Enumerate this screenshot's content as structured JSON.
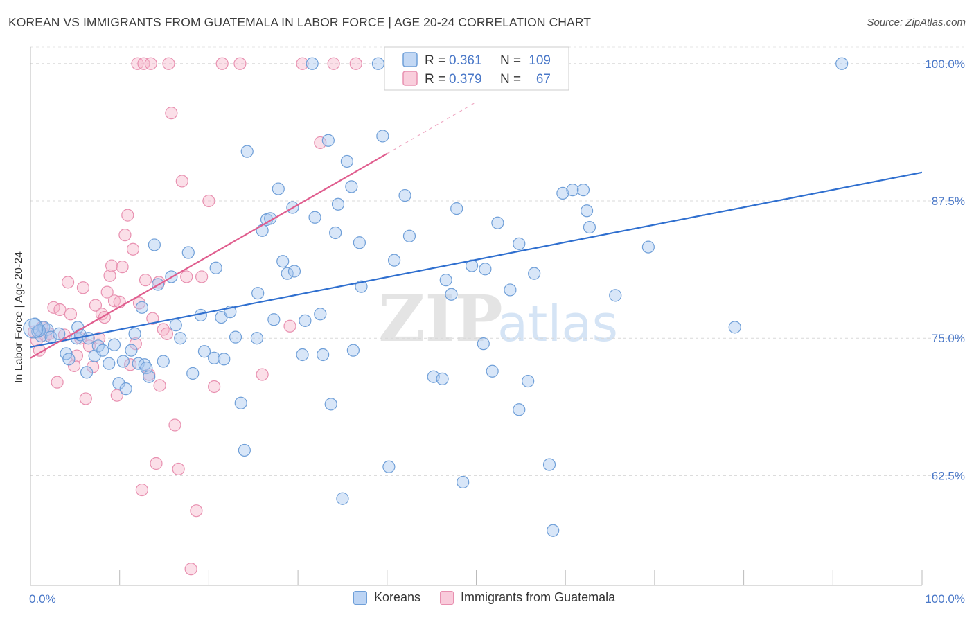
{
  "header": {
    "title": "KOREAN VS IMMIGRANTS FROM GUATEMALA IN LABOR FORCE | AGE 20-24 CORRELATION CHART",
    "source": "Source: ZipAtlas.com"
  },
  "watermark": {
    "zip": "ZIP",
    "atlas": "atlas"
  },
  "legend_top": {
    "rows": [
      {
        "r_label": "R =",
        "r_value": "0.361",
        "n_label": "N =",
        "n_value": "109"
      },
      {
        "r_label": "R =",
        "r_value": "0.379",
        "n_label": "N =",
        "n_value": "67"
      }
    ]
  },
  "chart_data": {
    "type": "scatter",
    "title": "KOREAN VS IMMIGRANTS FROM GUATEMALA IN LABOR FORCE | AGE 20-24 CORRELATION CHART",
    "xlabel": "",
    "ylabel": "In Labor Force | Age 20-24",
    "xlim": [
      0,
      100
    ],
    "ylim": [
      52.5,
      101.5
    ],
    "x_tick_labels": [
      "0.0%",
      "100.0%"
    ],
    "y_ticks": [
      62.5,
      75.0,
      87.5,
      100.0
    ],
    "y_tick_labels": [
      "62.5%",
      "75.0%",
      "87.5%",
      "100.0%"
    ],
    "grid": "horizontal dashed",
    "legend_position": "top-center and bottom",
    "colors": {
      "koreans_fill": "#a9c8f0",
      "koreans_stroke": "#6f9fd8",
      "koreans_line": "#2f6fcf",
      "guatemala_fill": "#f6b9cd",
      "guatemala_stroke": "#e890b0",
      "guatemala_line": "#e05d8e",
      "tick_label": "#4a78c8"
    },
    "series": [
      {
        "name": "Koreans",
        "trend": {
          "x": [
            0,
            100
          ],
          "y": [
            74.2,
            90.1
          ],
          "r": 0.361,
          "n": 109
        },
        "points": [
          [
            0.5,
            76.3
          ],
          [
            0.8,
            75.6
          ],
          [
            1.2,
            75.2
          ],
          [
            1.5,
            76.0
          ],
          [
            1.9,
            75.8
          ],
          [
            2.3,
            75.1
          ],
          [
            3.2,
            75.4
          ],
          [
            4.0,
            73.6
          ],
          [
            4.3,
            73.1
          ],
          [
            5.2,
            75.0
          ],
          [
            5.3,
            76.0
          ],
          [
            5.6,
            75.3
          ],
          [
            6.3,
            71.9
          ],
          [
            6.5,
            75.0
          ],
          [
            7.2,
            73.4
          ],
          [
            7.6,
            74.3
          ],
          [
            8.1,
            73.9
          ],
          [
            8.8,
            72.7
          ],
          [
            9.4,
            74.4
          ],
          [
            9.9,
            70.9
          ],
          [
            10.4,
            72.9
          ],
          [
            10.7,
            70.4
          ],
          [
            11.3,
            73.9
          ],
          [
            11.7,
            75.4
          ],
          [
            12.1,
            72.7
          ],
          [
            12.8,
            72.6
          ],
          [
            13.0,
            72.3
          ],
          [
            13.3,
            71.5
          ],
          [
            13.9,
            83.5
          ],
          [
            14.3,
            79.9
          ],
          [
            14.9,
            72.9
          ],
          [
            15.8,
            80.6
          ],
          [
            16.3,
            76.2
          ],
          [
            16.8,
            75.0
          ],
          [
            17.7,
            82.8
          ],
          [
            18.2,
            71.8
          ],
          [
            19.1,
            77.1
          ],
          [
            19.5,
            73.8
          ],
          [
            20.6,
            73.2
          ],
          [
            20.8,
            81.4
          ],
          [
            21.4,
            76.9
          ],
          [
            21.7,
            73.1
          ],
          [
            22.4,
            77.4
          ],
          [
            23.0,
            75.1
          ],
          [
            23.6,
            69.1
          ],
          [
            24.0,
            64.8
          ],
          [
            24.3,
            92.0
          ],
          [
            25.4,
            75.0
          ],
          [
            25.5,
            79.1
          ],
          [
            26.0,
            84.8
          ],
          [
            26.5,
            85.8
          ],
          [
            26.9,
            85.9
          ],
          [
            27.3,
            76.7
          ],
          [
            27.8,
            88.6
          ],
          [
            28.3,
            82.0
          ],
          [
            28.8,
            80.9
          ],
          [
            29.4,
            86.9
          ],
          [
            29.6,
            81.1
          ],
          [
            30.5,
            73.5
          ],
          [
            30.8,
            76.6
          ],
          [
            31.6,
            100.0
          ],
          [
            31.9,
            86.0
          ],
          [
            32.5,
            77.2
          ],
          [
            32.8,
            73.5
          ],
          [
            33.4,
            93.0
          ],
          [
            33.7,
            69.0
          ],
          [
            34.2,
            84.6
          ],
          [
            34.5,
            87.2
          ],
          [
            35.0,
            60.4
          ],
          [
            35.5,
            91.1
          ],
          [
            36.2,
            73.9
          ],
          [
            36.9,
            83.7
          ],
          [
            37.1,
            79.7
          ],
          [
            39.0,
            100.0
          ],
          [
            39.5,
            93.4
          ],
          [
            40.2,
            63.3
          ],
          [
            40.8,
            82.1
          ],
          [
            42.0,
            88.0
          ],
          [
            42.5,
            84.3
          ],
          [
            45.2,
            71.5
          ],
          [
            46.2,
            71.3
          ],
          [
            46.6,
            80.3
          ],
          [
            47.2,
            79.0
          ],
          [
            47.8,
            86.8
          ],
          [
            48.5,
            61.9
          ],
          [
            49.5,
            81.6
          ],
          [
            50.8,
            74.5
          ],
          [
            51.0,
            81.3
          ],
          [
            51.8,
            72.0
          ],
          [
            52.4,
            85.5
          ],
          [
            53.8,
            79.4
          ],
          [
            54.8,
            83.6
          ],
          [
            54.8,
            68.5
          ],
          [
            55.8,
            71.1
          ],
          [
            56.5,
            80.9
          ],
          [
            58.2,
            63.5
          ],
          [
            58.6,
            57.5
          ],
          [
            59.7,
            88.2
          ],
          [
            60.8,
            88.5
          ],
          [
            62.0,
            88.5
          ],
          [
            62.4,
            86.6
          ],
          [
            62.7,
            85.1
          ],
          [
            65.6,
            78.9
          ],
          [
            69.3,
            83.3
          ],
          [
            79.0,
            76.0
          ],
          [
            91.0,
            100.0
          ],
          [
            36.0,
            88.8
          ],
          [
            12.5,
            77.8
          ],
          [
            1.0,
            75.7
          ]
        ]
      },
      {
        "name": "Immigrants from Guatemala",
        "trend": {
          "x": [
            0,
            40.0
          ],
          "y": [
            73.2,
            91.8
          ],
          "dashed_to": [
            50.0,
            96.5
          ],
          "r": 0.379,
          "n": 67
        },
        "points": [
          [
            0.4,
            75.6
          ],
          [
            0.7,
            74.8
          ],
          [
            1.0,
            73.9
          ],
          [
            1.3,
            76.0
          ],
          [
            1.7,
            75.2
          ],
          [
            2.1,
            75.4
          ],
          [
            2.6,
            77.8
          ],
          [
            3.0,
            71.0
          ],
          [
            3.3,
            77.6
          ],
          [
            3.8,
            75.3
          ],
          [
            4.2,
            80.1
          ],
          [
            4.5,
            77.2
          ],
          [
            4.9,
            72.5
          ],
          [
            5.2,
            73.4
          ],
          [
            5.6,
            75.0
          ],
          [
            5.9,
            79.6
          ],
          [
            6.2,
            69.5
          ],
          [
            6.6,
            74.3
          ],
          [
            7.0,
            72.4
          ],
          [
            7.3,
            78.0
          ],
          [
            7.7,
            75.0
          ],
          [
            8.0,
            77.2
          ],
          [
            8.3,
            76.9
          ],
          [
            8.6,
            79.2
          ],
          [
            8.9,
            80.7
          ],
          [
            9.1,
            81.6
          ],
          [
            9.4,
            78.4
          ],
          [
            9.7,
            69.8
          ],
          [
            10.0,
            78.3
          ],
          [
            10.3,
            81.5
          ],
          [
            10.6,
            84.4
          ],
          [
            10.9,
            86.2
          ],
          [
            11.2,
            72.6
          ],
          [
            11.5,
            83.1
          ],
          [
            11.8,
            74.5
          ],
          [
            12.2,
            78.2
          ],
          [
            12.5,
            61.2
          ],
          [
            12.9,
            80.3
          ],
          [
            13.3,
            71.7
          ],
          [
            13.7,
            76.8
          ],
          [
            14.1,
            63.6
          ],
          [
            14.5,
            70.7
          ],
          [
            14.9,
            75.8
          ],
          [
            15.3,
            75.4
          ],
          [
            15.8,
            95.5
          ],
          [
            16.2,
            67.1
          ],
          [
            16.6,
            63.1
          ],
          [
            17.0,
            89.3
          ],
          [
            17.5,
            80.6
          ],
          [
            18.0,
            54.0
          ],
          [
            18.6,
            59.3
          ],
          [
            19.2,
            80.6
          ],
          [
            20.0,
            87.5
          ],
          [
            20.6,
            70.6
          ],
          [
            21.5,
            100.0
          ],
          [
            23.5,
            100.0
          ],
          [
            26.0,
            71.7
          ],
          [
            29.1,
            76.1
          ],
          [
            30.5,
            100.0
          ],
          [
            32.5,
            92.8
          ],
          [
            34.0,
            100.0
          ],
          [
            36.5,
            100.0
          ],
          [
            12.0,
            100.0
          ],
          [
            12.7,
            100.0
          ],
          [
            13.5,
            100.0
          ],
          [
            15.5,
            100.0
          ],
          [
            14.4,
            80.1
          ]
        ]
      }
    ]
  },
  "legend_bottom": {
    "items": [
      "Koreans",
      "Immigrants from Guatemala"
    ]
  }
}
